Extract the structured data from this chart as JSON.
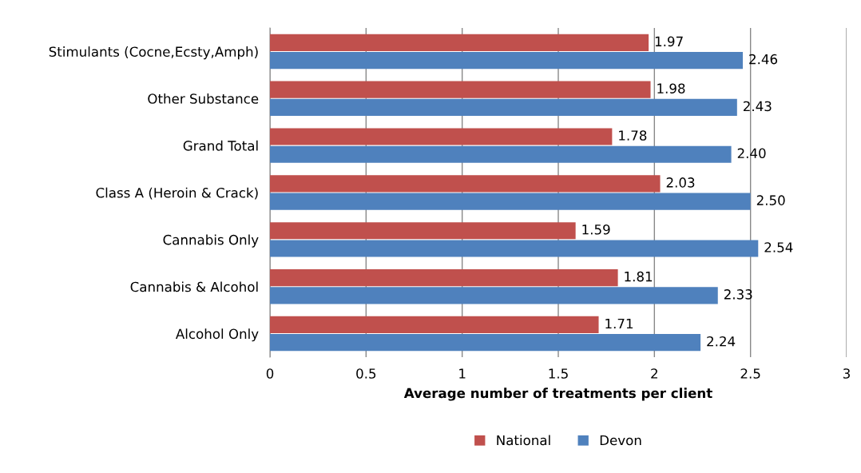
{
  "chart_data": {
    "type": "bar",
    "orientation": "horizontal",
    "xlabel": "Average number of treatments per client",
    "categories": [
      "Stimulants (Cocne,Ecsty,Amph)",
      "Other Substance",
      "Grand Total",
      "Class A (Heroin & Crack)",
      "Cannabis Only",
      "Cannabis & Alcohol",
      "Alcohol Only"
    ],
    "series": [
      {
        "name": "National",
        "color": "#c0504d",
        "values": [
          1.97,
          1.98,
          1.78,
          2.03,
          1.59,
          1.81,
          1.71
        ],
        "value_labels": [
          "1.97",
          "1.98",
          "1.78",
          "2.03",
          "1.59",
          "1.81",
          "1.71"
        ]
      },
      {
        "name": "Devon",
        "color": "#4f81bd",
        "values": [
          2.46,
          2.43,
          2.4,
          2.5,
          2.54,
          2.33,
          2.24
        ],
        "value_labels": [
          "2.46",
          "2.43",
          "2.40",
          "2.50",
          "2.54",
          "2.33",
          "2.24"
        ]
      }
    ],
    "xlim": [
      0,
      3
    ],
    "xticks": [
      0,
      0.5,
      1,
      1.5,
      2,
      2.5,
      3
    ],
    "grid": "x",
    "legend": "bottom"
  }
}
